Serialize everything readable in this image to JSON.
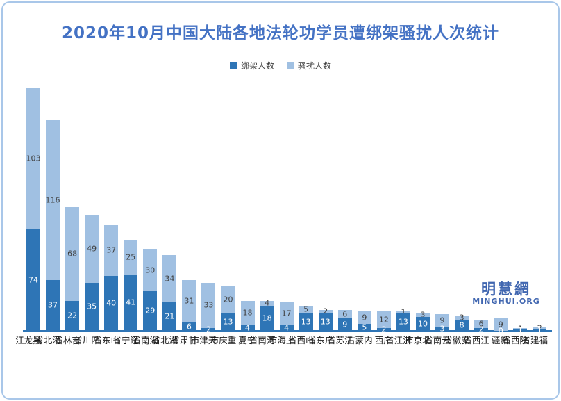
{
  "title": "2020年10月中国大陆各地法轮功学员遭绑架骚扰人次统计",
  "colors": {
    "title": "#4472c4",
    "kidnapped_bar": "#2e75b6",
    "harassed_bar": "#a0c0e2",
    "axis": "#2e75b6",
    "border": "#a9c7e9",
    "label_gray": "#404040",
    "label_white": "#ffffff",
    "watermark": "#4066b0"
  },
  "legend": [
    {
      "label": "绑架人数",
      "color": "#2e75b6"
    },
    {
      "label": "骚扰人数",
      "color": "#a0c0e2"
    }
  ],
  "watermark": {
    "cn": "明慧網",
    "en": "MINGHUI.ORG"
  },
  "chart_data": {
    "type": "bar",
    "stacked": true,
    "title": "2020年10月中国大陆各地法轮功学员遭绑架骚扰人次统计",
    "xlabel": "",
    "ylabel": "",
    "axis_labels_hidden": true,
    "grid": false,
    "legend_position": "top",
    "category_label_orientation": "vertical",
    "ylim": [
      0,
      185
    ],
    "categories": [
      "黑龙江",
      "河北省",
      "吉林省",
      "四川省",
      "山东省",
      "辽宁省",
      "湖南省",
      "湖北省",
      "甘肃省",
      "天津市",
      "重庆市",
      "宁夏",
      "河南省",
      "上海市",
      "山西省",
      "广东省",
      "江苏省",
      "内蒙古",
      "广西",
      "浙江省",
      "北京市",
      "云南省",
      "安徽省",
      "江西省",
      "新疆",
      "陕西省",
      "福建省"
    ],
    "series": [
      {
        "name": "绑架人数",
        "color": "#2e75b6",
        "label_color": "#ffffff",
        "values": [
          74,
          37,
          22,
          35,
          40,
          41,
          29,
          21,
          6,
          2,
          13,
          4,
          18,
          4,
          13,
          13,
          9,
          5,
          2,
          13,
          10,
          3,
          8,
          2,
          0,
          1,
          1
        ]
      },
      {
        "name": "骚扰人数",
        "color": "#a0c0e2",
        "label_color": "#404040",
        "values": [
          103,
          116,
          68,
          49,
          37,
          25,
          30,
          34,
          31,
          33,
          20,
          18,
          4,
          17,
          5,
          2,
          6,
          9,
          12,
          1,
          3,
          9,
          3,
          6,
          9,
          1,
          2
        ]
      }
    ]
  }
}
